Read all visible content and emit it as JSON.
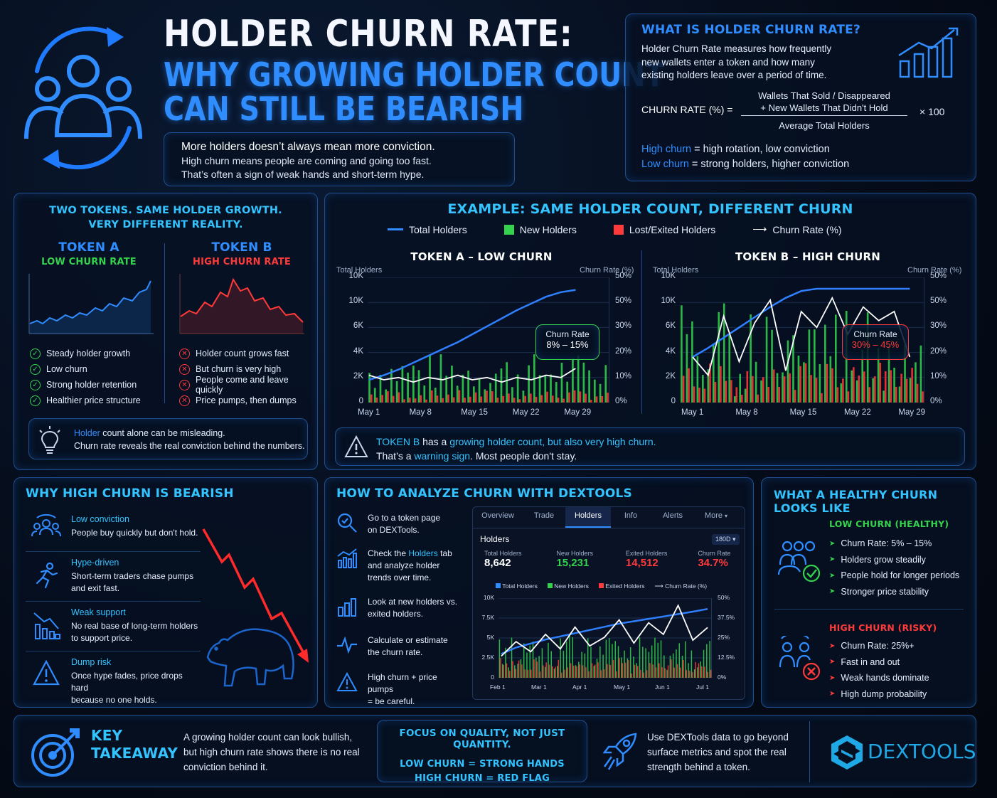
{
  "header": {
    "title": "HOLDER CHURN RATE:",
    "subtitle_line1": "WHY GROWING HOLDER COUNT",
    "subtitle_line2": "CAN STILL BE BEARISH",
    "intro_line1": "More holders doesn’t always mean more conviction.",
    "intro_line2": "High churn means people are coming and going too fast.",
    "intro_line3": "That’s often a sign of weak hands and short-term hype."
  },
  "definition": {
    "heading": "WHAT IS HOLDER CHURN RATE?",
    "text_line1": "Holder Churn Rate measures how frequently",
    "text_line2": "new wallets enter a token and how many",
    "text_line3": "existing holders leave over a period of time.",
    "formula_label": "CHURN RATE (%) =",
    "numerator_line1": "Wallets That Sold / Disappeared",
    "numerator_line2": "+ New Wallets That Didn't Hold",
    "denominator": "Average Total Holders",
    "multiplier": "× 100",
    "high_term": "High churn",
    "high_desc": " = high rotation, low conviction",
    "low_term": "Low churn",
    "low_desc": " = strong holders, higher conviction"
  },
  "two_tokens": {
    "heading_line1": "TWO TOKENS. SAME HOLDER GROWTH.",
    "heading_line2": "VERY DIFFERENT REALITY.",
    "token_a": "TOKEN A",
    "token_a_sub": "LOW CHURN RATE",
    "token_b": "TOKEN B",
    "token_b_sub": "HIGH CHURN RATE",
    "a_points": [
      "Steady holder growth",
      "Low churn",
      "Strong holder retention",
      "Healthier price structure"
    ],
    "b_points": [
      "Holder count grows fast",
      "But churn is very high",
      "People come and leave quickly",
      "Price pumps, then dumps"
    ],
    "tip_word": "Holder",
    "tip_line1_rest": " count alone can be misleading.",
    "tip_line2": "Churn rate reveals the real conviction behind the numbers."
  },
  "example": {
    "heading": "EXAMPLE: SAME HOLDER COUNT, DIFFERENT CHURN",
    "legend": [
      "Total Holders",
      "New Holders",
      "Lost/Exited Holders",
      "Churn Rate (%)"
    ],
    "left_axis_label": "Total Holders",
    "right_axis_label": "Churn Rate (%)",
    "warning_token": "TOKEN B",
    "warning_mid": " has a ",
    "warning_growing": "growing holder count, but also very high churn.",
    "warning_line2a": "That’s a ",
    "warning_word": "warning sign",
    "warning_line2b": ". Most people don't stay."
  },
  "chart_data": [
    {
      "type": "line",
      "title": "TOKEN A – LOW CHURN",
      "ylabel": "Total Holders",
      "y2label": "Churn Rate (%)",
      "x_ticks": [
        "May 1",
        "May 8",
        "May 15",
        "May 22",
        "May 29"
      ],
      "y_ticks": [
        "0",
        "2K",
        "4K",
        "6K",
        "10K",
        "10K"
      ],
      "y2_ticks": [
        "0%",
        "10%",
        "20%",
        "30%",
        "50%",
        "50%"
      ],
      "callout_label": "Churn Rate",
      "callout_value": "8% – 15%",
      "series": [
        {
          "name": "Total Holders",
          "values": [
            2000,
            2400,
            2900,
            3500,
            4100,
            4700,
            5300,
            6000,
            6700,
            7400,
            8100,
            8700,
            9300,
            9700,
            9900
          ]
        },
        {
          "name": "Churn Rate (%)",
          "values": [
            12,
            10,
            11,
            9,
            11,
            10,
            12,
            10,
            11,
            9,
            11,
            10,
            12,
            11,
            15
          ]
        }
      ]
    },
    {
      "type": "line",
      "title": "TOKEN B – HIGH CHURN",
      "ylabel": "Total Holders",
      "y2label": "Churn Rate (%)",
      "x_ticks": [
        "May 1",
        "May 8",
        "May 15",
        "May 22",
        "May 29"
      ],
      "y_ticks": [
        "0",
        "2K",
        "4K",
        "6K",
        "10K",
        "10K"
      ],
      "y2_ticks": [
        "0%",
        "10%",
        "20%",
        "30%",
        "50%",
        "50%"
      ],
      "callout_label": "Churn Rate",
      "callout_value": "30% – 45%",
      "series": [
        {
          "name": "Total Holders",
          "values": [
            4000,
            4800,
            5700,
            6600,
            7500,
            8400,
            9200,
            9800,
            10000,
            10000,
            10000,
            10000,
            10000,
            10000,
            10000
          ]
        },
        {
          "name": "Churn Rate (%)",
          "values": [
            20,
            12,
            38,
            18,
            35,
            45,
            14,
            40,
            33,
            46,
            30,
            42,
            36,
            40,
            20
          ]
        }
      ]
    },
    {
      "type": "line",
      "title": "Holders",
      "x_ticks": [
        "Feb 1",
        "Mar 1",
        "Apr 1",
        "May 1",
        "Jun 1",
        "Jul 1"
      ],
      "y_ticks": [
        "0",
        "2.5K",
        "5K",
        "7.5K",
        "10K"
      ],
      "y2_ticks": [
        "0%",
        "12.5%",
        "25%",
        "37.5%",
        "50%"
      ],
      "series": [
        {
          "name": "Total Holders",
          "values": [
            3000,
            3800,
            4300,
            4800,
            5200,
            5600,
            6000,
            6400,
            6800,
            7100,
            7400,
            7700,
            8000,
            8300,
            8642
          ]
        },
        {
          "name": "Churn Rate (%)",
          "values": [
            15,
            25,
            18,
            30,
            20,
            35,
            22,
            28,
            40,
            24,
            38,
            30,
            50,
            26,
            34.7
          ]
        }
      ]
    }
  ],
  "why_bearish": {
    "heading": "WHY HIGH CHURN IS BEARISH",
    "items": [
      {
        "title": "Low conviction",
        "desc": "People buy quickly but don't hold."
      },
      {
        "title": "Hype-driven",
        "desc1": "Short-term traders chase pumps",
        "desc2": "and exit fast."
      },
      {
        "title": "Weak support",
        "desc1": "No real base of long-term holders",
        "desc2": "to support price."
      },
      {
        "title": "Dump risk",
        "desc1": "Once hype fades, price drops hard",
        "desc2": "because no one holds."
      }
    ]
  },
  "analyze": {
    "heading": "HOW TO ANALYZE CHURN WITH DEXTOOLS",
    "step1a": "Go to a token page",
    "step1b": "on DEXTools.",
    "step2a": "Check the ",
    "step2_hl": "Holders",
    "step2b": " tab",
    "step2c": "and analyze holder",
    "step2d": "trends over time.",
    "step3a": "Look at new holders vs.",
    "step3b": "exited holders.",
    "step4a": "Calculate or estimate",
    "step4b": "the churn rate.",
    "step5a": "High churn + price pumps",
    "step5b": "= be careful.",
    "tabs": [
      "Overview",
      "Trade",
      "Holders",
      "Info",
      "Alerts",
      "More"
    ],
    "panel_title": "Holders",
    "range": "180D",
    "stats": [
      {
        "label": "Total Holders",
        "value": "8,642"
      },
      {
        "label": "New Holders",
        "value": "15,231"
      },
      {
        "label": "Exited Holders",
        "value": "14,512"
      },
      {
        "label": "Churn Rate",
        "value": "34.7%"
      }
    ],
    "legend": [
      "Total Holders",
      "New Holders",
      "Exited Holders",
      "Churn Rate (%)"
    ]
  },
  "healthy": {
    "heading": "WHAT A HEALTHY CHURN LOOKS LIKE",
    "low_title": "LOW CHURN (HEALTHY)",
    "low_points": [
      "Churn Rate: 5% – 15%",
      "Holders grow steadily",
      "People hold for longer periods",
      "Stronger price stability"
    ],
    "high_title": "HIGH CHURN (RISKY)",
    "high_points": [
      "Churn Rate: 25%+",
      "Fast in and out",
      "Weak hands dominate",
      "High dump probability"
    ]
  },
  "footer": {
    "key_line1": "KEY",
    "key_line2": "TAKEAWAY",
    "takeaway_line1": "A growing holder count can look bullish,",
    "takeaway_line2": "but high churn rate shows there is no real",
    "takeaway_line3": "conviction behind it.",
    "focus": "FOCUS ON QUALITY, NOT JUST QUANTITY.",
    "low_eq": "LOW CHURN = STRONG HANDS",
    "high_eq": "HIGH CHURN = RED FLAG",
    "cta_line1": "Use DEXTools data to go beyond",
    "cta_line2": "surface metrics and spot the real",
    "cta_line3": "strength behind a token.",
    "brand": "DEXTOOLS"
  }
}
